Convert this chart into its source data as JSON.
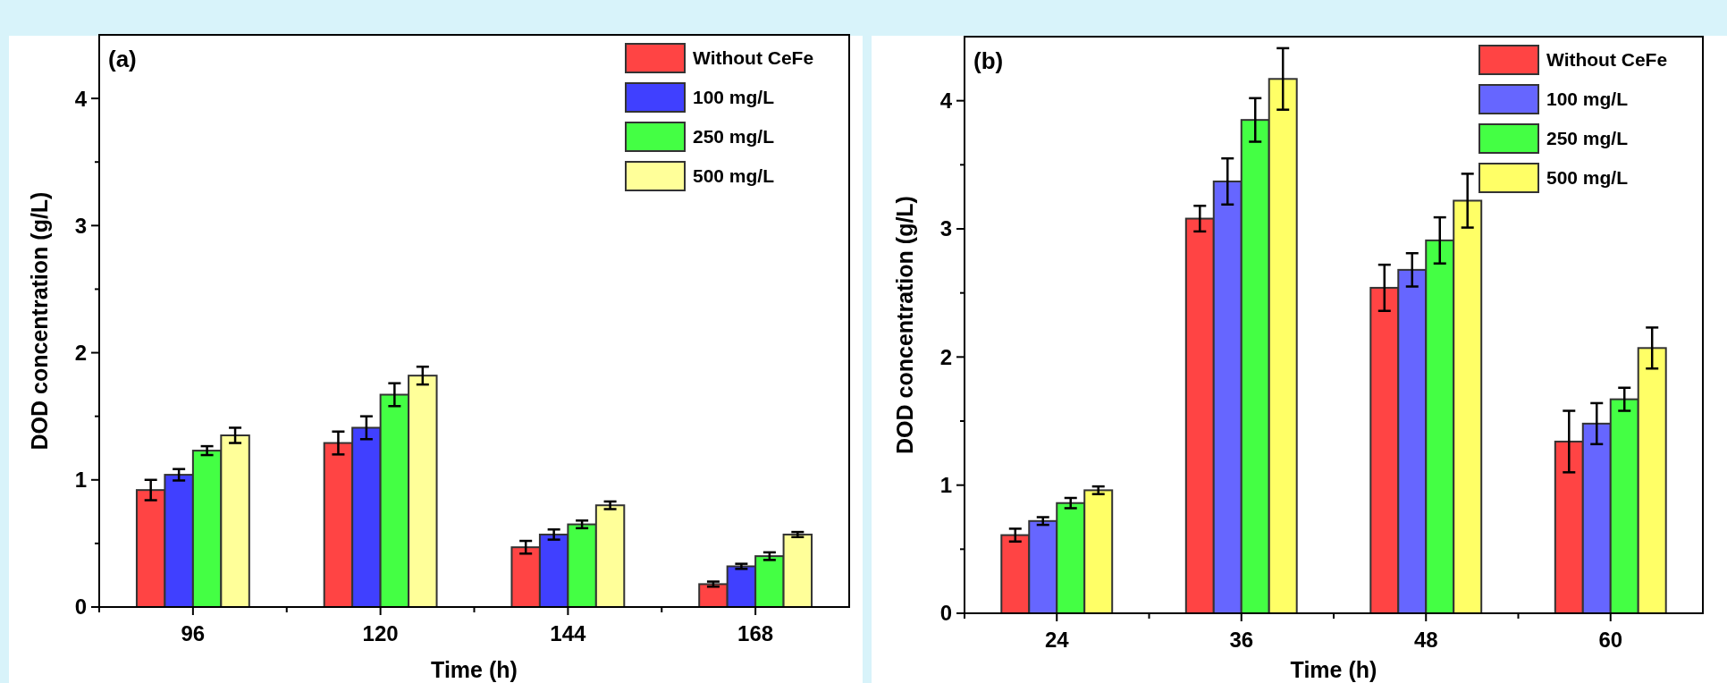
{
  "chart_data": [
    {
      "type": "bar",
      "title": "(a)",
      "xlabel": "Time (h)",
      "ylabel": "DOD concentration (g/L)",
      "categories": [
        "96",
        "120",
        "144",
        "168"
      ],
      "ylim": [
        0,
        4.5
      ],
      "yticks": [
        0,
        {
          "value": 0.5,
          "label": null
        },
        1,
        {
          "value": 1.5,
          "label": null
        },
        2,
        {
          "value": 2.5,
          "label": null
        },
        3,
        {
          "value": 3.5,
          "label": null
        },
        4
      ],
      "grid": false,
      "legend": "top right",
      "series": [
        {
          "name": "Without CeFe",
          "color": "#ff4444",
          "values": [
            0.92,
            1.29,
            0.47,
            0.18
          ],
          "errors": [
            0.08,
            0.09,
            0.05,
            0.02
          ]
        },
        {
          "name": "100 mg/L",
          "color": "#4040ff",
          "values": [
            1.04,
            1.41,
            0.57,
            0.32
          ],
          "errors": [
            0.045,
            0.09,
            0.04,
            0.02
          ]
        },
        {
          "name": "250 mg/L",
          "color": "#44ff44",
          "values": [
            1.23,
            1.67,
            0.65,
            0.4
          ],
          "errors": [
            0.035,
            0.09,
            0.03,
            0.03
          ]
        },
        {
          "name": "500 mg/L",
          "color": "#ffff99",
          "values": [
            1.35,
            1.82,
            0.8,
            0.57
          ],
          "errors": [
            0.06,
            0.07,
            0.03,
            0.02
          ]
        }
      ]
    },
    {
      "type": "bar",
      "title": "(b)",
      "xlabel": "Time (h)",
      "ylabel": "DOD concentration (g/L)",
      "categories": [
        "24",
        "36",
        "48",
        "60"
      ],
      "ylim": [
        0,
        4.5
      ],
      "yticks": [
        0,
        {
          "value": 0.5,
          "label": null
        },
        1,
        {
          "value": 1.5,
          "label": null
        },
        2,
        {
          "value": 2.5,
          "label": null
        },
        3,
        {
          "value": 3.5,
          "label": null
        },
        4
      ],
      "grid": false,
      "legend": "top right",
      "series": [
        {
          "name": "Without CeFe",
          "color": "#ff4444",
          "values": [
            0.61,
            3.08,
            2.54,
            1.34
          ],
          "errors": [
            0.05,
            0.1,
            0.18,
            0.24
          ]
        },
        {
          "name": "100 mg/L",
          "color": "#6666ff",
          "values": [
            0.72,
            3.37,
            2.68,
            1.48
          ],
          "errors": [
            0.03,
            0.18,
            0.13,
            0.16
          ]
        },
        {
          "name": "250 mg/L",
          "color": "#44ff44",
          "values": [
            0.86,
            3.85,
            2.91,
            1.67
          ],
          "errors": [
            0.04,
            0.17,
            0.18,
            0.09
          ]
        },
        {
          "name": "500 mg/L",
          "color": "#ffff66",
          "values": [
            0.96,
            4.17,
            3.22,
            2.07
          ],
          "errors": [
            0.03,
            0.24,
            0.21,
            0.16
          ]
        }
      ]
    }
  ]
}
